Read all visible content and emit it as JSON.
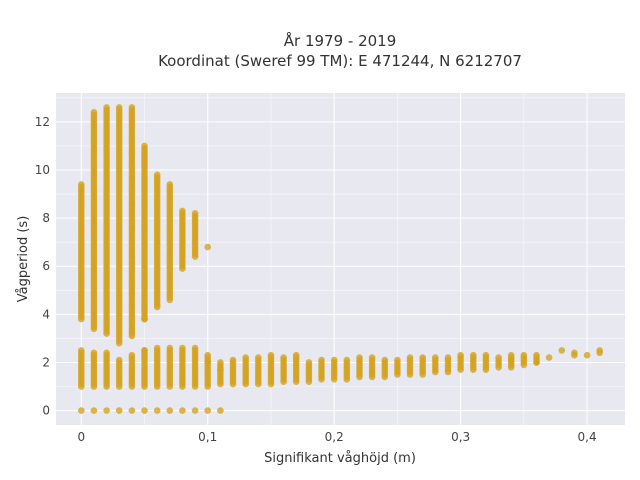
{
  "chart_data": {
    "type": "scatter",
    "title": "År 1979 - 2019",
    "subtitle": "Koordinat (Sweref 99 TM): E 471244, N 6212707",
    "xlabel": "Signifikant våghöjd (m)",
    "ylabel": "Vågperiod (s)",
    "xlim": [
      -0.02,
      0.43
    ],
    "ylim": [
      -0.6,
      13.2
    ],
    "xticks": [
      0,
      0.1,
      0.2,
      0.3,
      0.4
    ],
    "xtick_labels": [
      "0",
      "0,1",
      "0,2",
      "0,3",
      "0,4"
    ],
    "yticks": [
      0,
      2,
      4,
      6,
      8,
      10,
      12
    ],
    "ytick_labels": [
      "0",
      "2",
      "4",
      "6",
      "8",
      "10",
      "12"
    ],
    "grid": true,
    "point_color": "#d4a21c",
    "background_color": "#e8e8f0",
    "x_step": 0.01,
    "zero_period_columns": [
      0,
      0.01,
      0.02,
      0.03,
      0.04,
      0.05,
      0.06,
      0.07,
      0.08,
      0.09,
      0.1,
      0.11
    ],
    "low_band": [
      [
        0.0,
        1.0,
        2.5
      ],
      [
        0.01,
        1.0,
        2.4
      ],
      [
        0.02,
        1.0,
        2.4
      ],
      [
        0.03,
        1.0,
        2.1
      ],
      [
        0.04,
        1.0,
        2.3
      ],
      [
        0.05,
        1.0,
        2.5
      ],
      [
        0.06,
        1.0,
        2.6
      ],
      [
        0.07,
        1.0,
        2.6
      ],
      [
        0.08,
        1.0,
        2.6
      ],
      [
        0.09,
        1.0,
        2.6
      ],
      [
        0.1,
        1.0,
        2.3
      ],
      [
        0.11,
        1.1,
        2.0
      ],
      [
        0.12,
        1.1,
        2.1
      ],
      [
        0.13,
        1.1,
        2.2
      ],
      [
        0.14,
        1.1,
        2.2
      ],
      [
        0.15,
        1.1,
        2.3
      ],
      [
        0.16,
        1.2,
        2.2
      ],
      [
        0.17,
        1.2,
        2.3
      ],
      [
        0.18,
        1.2,
        2.0
      ],
      [
        0.19,
        1.3,
        2.1
      ],
      [
        0.2,
        1.3,
        2.1
      ],
      [
        0.21,
        1.3,
        2.1
      ],
      [
        0.22,
        1.4,
        2.2
      ],
      [
        0.23,
        1.4,
        2.2
      ],
      [
        0.24,
        1.4,
        2.1
      ],
      [
        0.25,
        1.5,
        2.1
      ],
      [
        0.26,
        1.5,
        2.2
      ],
      [
        0.27,
        1.5,
        2.2
      ],
      [
        0.28,
        1.6,
        2.2
      ],
      [
        0.29,
        1.6,
        2.2
      ],
      [
        0.3,
        1.7,
        2.3
      ],
      [
        0.31,
        1.7,
        2.3
      ],
      [
        0.32,
        1.7,
        2.3
      ],
      [
        0.33,
        1.8,
        2.2
      ],
      [
        0.34,
        1.8,
        2.3
      ],
      [
        0.35,
        1.9,
        2.3
      ],
      [
        0.36,
        2.0,
        2.3
      ]
    ],
    "high_band": [
      [
        0.0,
        3.8,
        9.4
      ],
      [
        0.01,
        3.4,
        12.4
      ],
      [
        0.02,
        3.2,
        12.6
      ],
      [
        0.03,
        2.8,
        12.6
      ],
      [
        0.04,
        3.1,
        12.6
      ],
      [
        0.05,
        3.8,
        11.0
      ],
      [
        0.06,
        4.3,
        9.8
      ],
      [
        0.07,
        4.7,
        9.4
      ],
      [
        0.08,
        5.9,
        8.3
      ],
      [
        0.09,
        6.4,
        8.2
      ]
    ],
    "extra_points": [
      [
        0.05,
        2.5
      ],
      [
        0.05,
        3.8
      ],
      [
        0.07,
        4.6
      ],
      [
        0.1,
        6.8
      ],
      [
        0.1,
        2.0
      ],
      [
        0.11,
        1.7
      ],
      [
        0.38,
        2.5
      ],
      [
        0.39,
        2.3
      ],
      [
        0.39,
        2.4
      ],
      [
        0.4,
        2.3
      ],
      [
        0.41,
        2.4
      ],
      [
        0.41,
        2.5
      ],
      [
        0.36,
        2.0
      ],
      [
        0.34,
        2.1
      ],
      [
        0.37,
        2.2
      ]
    ]
  }
}
